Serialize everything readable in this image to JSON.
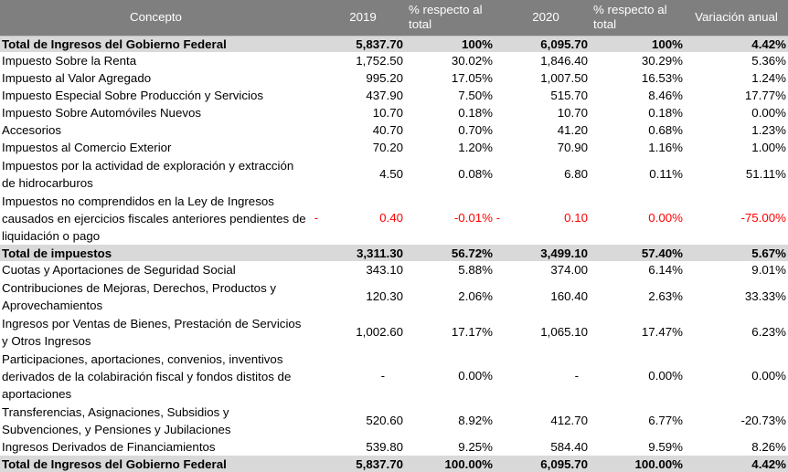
{
  "headers": {
    "concepto": "Concepto",
    "y2019": "2019",
    "pct2019": "% respecto al total",
    "y2020": "2020",
    "pct2020": "% respecto al total",
    "variacion": "Variación anual"
  },
  "rows": [
    {
      "concepto": "Total de Ingresos del Gobierno Federal",
      "v2019": "5,837.70",
      "p2019": "100%",
      "v2020": "6,095.70",
      "p2020": "100%",
      "var": "4.42%"
    },
    {
      "concepto": "Impuesto Sobre la Renta",
      "v2019": "1,752.50",
      "p2019": "30.02%",
      "v2020": "1,846.40",
      "p2020": "30.29%",
      "var": "5.36%"
    },
    {
      "concepto": "Impuesto al Valor Agregado",
      "v2019": "995.20",
      "p2019": "17.05%",
      "v2020": "1,007.50",
      "p2020": "16.53%",
      "var": "1.24%"
    },
    {
      "concepto": "Impuesto Especial Sobre Producción y Servicios",
      "v2019": "437.90",
      "p2019": "7.50%",
      "v2020": "515.70",
      "p2020": "8.46%",
      "var": "17.77%"
    },
    {
      "concepto": "Impuesto Sobre Automóviles Nuevos",
      "v2019": "10.70",
      "p2019": "0.18%",
      "v2020": "10.70",
      "p2020": "0.18%",
      "var": "0.00%"
    },
    {
      "concepto": "Accesorios",
      "v2019": "40.70",
      "p2019": "0.70%",
      "v2020": "41.20",
      "p2020": "0.68%",
      "var": "1.23%"
    },
    {
      "concepto": "Impuestos al Comercio Exterior",
      "v2019": "70.20",
      "p2019": "1.20%",
      "v2020": "70.90",
      "p2020": "1.16%",
      "var": "1.00%"
    },
    {
      "concepto": "Impuestos por la actividad de exploración y extracción de hidrocarburos",
      "v2019": "4.50",
      "p2019": "0.08%",
      "v2020": "6.80",
      "p2020": "0.11%",
      "var": "51.11%"
    },
    {
      "concepto": "Impuestos no comprendidos en la Ley de Ingresos causados en ejercicios fiscales anteriores pendientes de liquidación o pago",
      "neg_marker": "-",
      "v2019": "0.40",
      "p2019": "-0.01%",
      "v2020": "0.10",
      "p2020": "0.00%",
      "var": "-75.00%"
    },
    {
      "concepto": "Total de impuestos",
      "v2019": "3,311.30",
      "p2019": "56.72%",
      "v2020": "3,499.10",
      "p2020": "57.40%",
      "var": "5.67%"
    },
    {
      "concepto": "Cuotas y Aportaciones de Seguridad Social",
      "v2019": "343.10",
      "p2019": "5.88%",
      "v2020": "374.00",
      "p2020": "6.14%",
      "var": "9.01%"
    },
    {
      "concepto": "Contribuciones de Mejoras, Derechos, Productos y Aprovechamientos",
      "v2019": "120.30",
      "p2019": "2.06%",
      "v2020": "160.40",
      "p2020": "2.63%",
      "var": "33.33%"
    },
    {
      "concepto": "Ingresos por Ventas de Bienes, Prestación de Servicios y Otros Ingresos",
      "v2019": "1,002.60",
      "p2019": "17.17%",
      "v2020": "1,065.10",
      "p2020": "17.47%",
      "var": "6.23%"
    },
    {
      "concepto": "Participaciones, aportaciones, convenios, inventivos derivados de la colabiración fiscal y fondos distitos de aportaciones",
      "v2019": "-",
      "p2019": "0.00%",
      "v2020": "-",
      "p2020": "0.00%",
      "var": "0.00%"
    },
    {
      "concepto": "Transferencias, Asignaciones, Subsidios y Subvenciones, y Pensiones y Jubilaciones",
      "v2019": "520.60",
      "p2019": "8.92%",
      "v2020": "412.70",
      "p2020": "6.77%",
      "var": "-20.73%"
    },
    {
      "concepto": "Ingresos Derivados de Financiamientos",
      "v2019": "539.80",
      "p2019": "9.25%",
      "v2020": "584.40",
      "p2020": "9.59%",
      "var": "8.26%"
    },
    {
      "concepto": "Total de Ingresos del Gobierno Federal",
      "v2019": "5,837.70",
      "p2019": "100.00%",
      "v2020": "6,095.70",
      "p2020": "100.00%",
      "var": "4.42%"
    }
  ],
  "colors": {
    "header_bg": "#7f7f7f",
    "total_bg": "#d9d9d9",
    "negative": "#ff0000"
  }
}
